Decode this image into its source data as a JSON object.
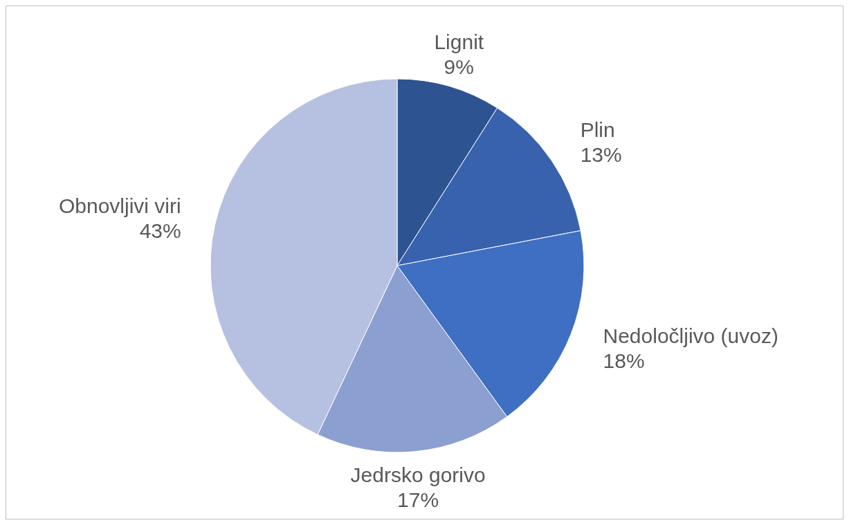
{
  "chart_data": {
    "type": "pie",
    "categories": [
      "Lignit",
      "Plin",
      "Nedoločljivo (uvoz)",
      "Jedrsko gorivo",
      "Obnovljivi viri"
    ],
    "values": [
      9,
      13,
      18,
      17,
      43
    ],
    "value_labels": [
      "9%",
      "13%",
      "18%",
      "17%",
      "43%"
    ],
    "colors": [
      "#2e5391",
      "#3862ad",
      "#3f6fc2",
      "#8c9fd1",
      "#b6c0e0"
    ]
  }
}
